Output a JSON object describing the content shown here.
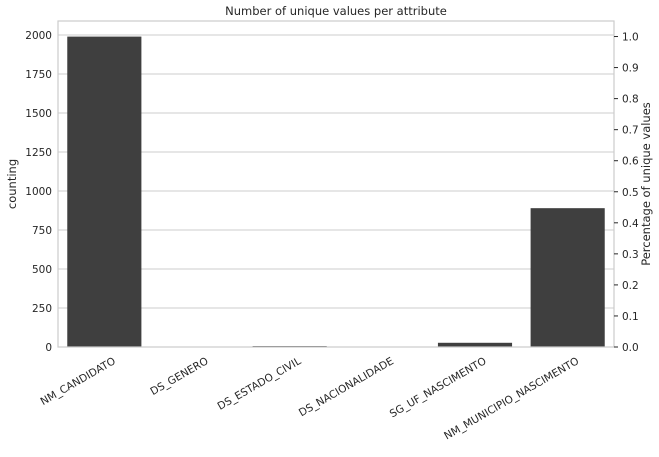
{
  "chart_data": {
    "type": "bar",
    "title": "Number of unique values per attribute",
    "ylabel": "counting",
    "ylabel_right": "Percentage of unique values",
    "xlabel": "",
    "categories": [
      "NM_CANDIDATO",
      "DS_GENERO",
      "DS_ESTADO_CIVIL",
      "DS_NACIONALIDADE",
      "SG_UF_NASCIMENTO",
      "NM_MUNICIPIO_NASCIMENTO"
    ],
    "values": [
      1990,
      2,
      6,
      2,
      27,
      890
    ],
    "ylim": [
      0,
      2090
    ],
    "yticks": [
      0,
      250,
      500,
      750,
      1000,
      1250,
      1500,
      1750,
      2000
    ],
    "ylim_right": [
      0,
      1.05
    ],
    "yticks_right": [
      0.0,
      0.1,
      0.2,
      0.3,
      0.4,
      0.5,
      0.6,
      0.7,
      0.8,
      0.9,
      1.0
    ],
    "grid": true,
    "bar_color": "#3f3f3f",
    "grid_color": "#cccccc",
    "frame_color": "#cccccc"
  }
}
